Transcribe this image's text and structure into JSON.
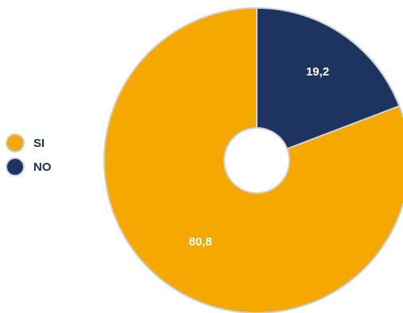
{
  "chart_data": {
    "type": "pie",
    "donut": true,
    "categories": [
      "SI",
      "NO"
    ],
    "values": [
      80.8,
      19.2
    ],
    "value_labels": [
      "80,8",
      "19,2"
    ],
    "colors": [
      "#f4a800",
      "#1d3461"
    ],
    "legend_position": "left",
    "title": "",
    "xlabel": "",
    "ylabel": ""
  }
}
